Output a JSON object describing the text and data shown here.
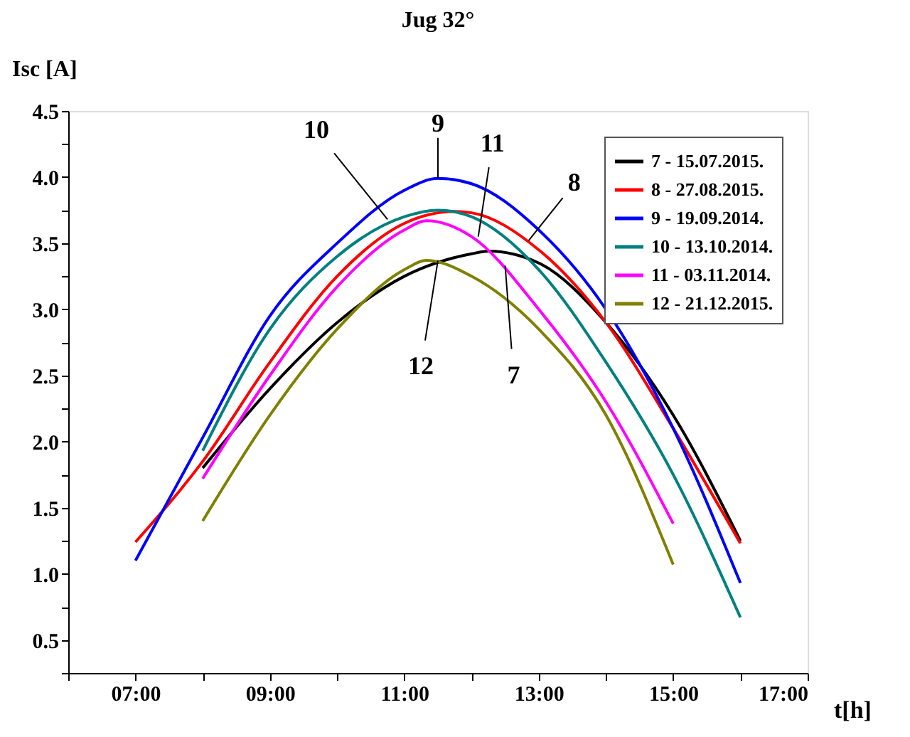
{
  "chart_data": {
    "type": "line",
    "title": "Jug 32°",
    "xlabel": "t[h]",
    "ylabel": "Isc [A]",
    "xlim": [
      6,
      17
    ],
    "ylim": [
      0.25,
      4.5
    ],
    "xticks": [
      {
        "value": 6,
        "label": null
      },
      {
        "value": 7,
        "label": "07:00"
      },
      {
        "value": 8,
        "label": null
      },
      {
        "value": 9,
        "label": "09:00"
      },
      {
        "value": 10,
        "label": null
      },
      {
        "value": 11,
        "label": "11:00"
      },
      {
        "value": 12,
        "label": null
      },
      {
        "value": 13,
        "label": "13:00"
      },
      {
        "value": 14,
        "label": null
      },
      {
        "value": 15,
        "label": "15:00"
      },
      {
        "value": 16,
        "label": null
      },
      {
        "value": 17,
        "label": "17:00"
      }
    ],
    "yticks": [
      {
        "value": 0.25,
        "label": null
      },
      0.5,
      {
        "value": 0.75,
        "label": null
      },
      {
        "value": 1,
        "label": "1.0"
      },
      {
        "value": 1.25,
        "label": null
      },
      1.5,
      {
        "value": 1.75,
        "label": null
      },
      {
        "value": 2,
        "label": "2.0"
      },
      {
        "value": 2.25,
        "label": null
      },
      2.5,
      {
        "value": 2.75,
        "label": null
      },
      {
        "value": 3,
        "label": "3.0"
      },
      {
        "value": 3.25,
        "label": null
      },
      3.5,
      {
        "value": 3.75,
        "label": null
      },
      {
        "value": 4,
        "label": "4.0"
      },
      {
        "value": 4.25,
        "label": null
      },
      4.5
    ],
    "grid": false,
    "legend": "top right",
    "marker": "none",
    "line_style": "solid",
    "series": [
      {
        "name": "7 -  15.07.2015.",
        "color": "#000000",
        "x": [
          8,
          9,
          10,
          11,
          12,
          12.25,
          13,
          14,
          15,
          16
        ],
        "values": [
          1.8,
          2.4,
          2.9,
          3.25,
          3.42,
          3.44,
          3.35,
          2.9,
          2.2,
          1.25
        ]
      },
      {
        "name": "8 -  27.08.2015.",
        "color": "#ff0000",
        "x": [
          7,
          8,
          9,
          10,
          11,
          11.75,
          12,
          13,
          14,
          15,
          16
        ],
        "values": [
          1.24,
          1.85,
          2.6,
          3.25,
          3.65,
          3.74,
          3.73,
          3.45,
          2.9,
          2.1,
          1.23
        ]
      },
      {
        "name": "9 -  19.09.2014.",
        "color": "#0000ff",
        "x": [
          7,
          8,
          9,
          10,
          11,
          11.5,
          12,
          13,
          14,
          15,
          16
        ],
        "values": [
          1.1,
          2.03,
          2.95,
          3.5,
          3.9,
          3.99,
          3.95,
          3.6,
          3.0,
          2.1,
          0.93
        ]
      },
      {
        "name": "10 - 13.10.2014.",
        "color": "#008080",
        "x": [
          8,
          9,
          10,
          11,
          11.5,
          12,
          13,
          14,
          15,
          16
        ],
        "values": [
          1.93,
          2.85,
          3.4,
          3.7,
          3.75,
          3.7,
          3.3,
          2.6,
          1.75,
          0.67
        ]
      },
      {
        "name": "11 - 03.11.2014.",
        "color": "#ff00ff",
        "x": [
          8,
          9,
          10,
          11,
          11.33,
          12,
          13,
          14,
          15
        ],
        "values": [
          1.72,
          2.5,
          3.17,
          3.6,
          3.67,
          3.55,
          3.0,
          2.3,
          1.38
        ]
      },
      {
        "name": "12 - 21.12.2015.",
        "color": "#808000",
        "x": [
          8,
          9,
          10,
          11,
          11.33,
          12,
          13,
          14,
          15
        ],
        "values": [
          1.4,
          2.2,
          2.85,
          3.3,
          3.37,
          3.25,
          2.85,
          2.2,
          1.07
        ]
      }
    ],
    "annotations": [
      {
        "text": "10",
        "x": 10.75,
        "y": 3.68
      },
      {
        "text": "9",
        "x": 11.5,
        "y": 3.99
      },
      {
        "text": "11",
        "x": 12.1,
        "y": 3.55
      },
      {
        "text": "8",
        "x": 12.85,
        "y": 3.52
      },
      {
        "text": "12",
        "x": 11.5,
        "y": 3.37
      },
      {
        "text": "7",
        "x": 12.5,
        "y": 3.33
      }
    ]
  }
}
